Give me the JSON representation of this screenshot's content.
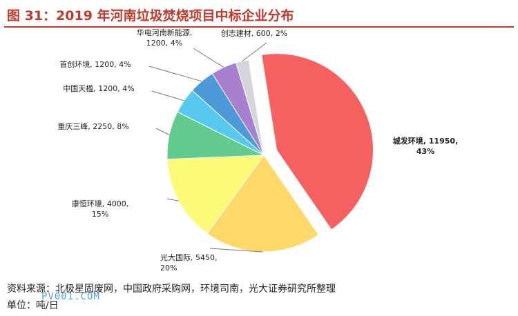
{
  "figure": {
    "title": "图 31：2019 年河南垃圾焚烧项目中标企业分布",
    "source": "资料来源：北极星固废网，中国政府采购网，环境司南，光大证券研究所整理",
    "unit": "单位：吨/日",
    "watermark": "PV001.COM"
  },
  "chart_data": {
    "type": "pie",
    "title": "图 31：2019 年河南垃圾焚烧项目中标企业分布",
    "unit": "吨/日",
    "slices": [
      {
        "name": "城发环境",
        "value": 11950,
        "percent": "43%",
        "color": "#f56060",
        "exploded": true,
        "label": "城发环境, 11950,",
        "label2": "43%"
      },
      {
        "name": "光大国际",
        "value": 5450,
        "percent": "20%",
        "color": "#ffd86a",
        "label": "光大国际, 5450,",
        "label2": "20%"
      },
      {
        "name": "康恒环境",
        "value": 4000,
        "percent": "15%",
        "color": "#fbfb78",
        "label": "康恒环境, 4000,",
        "label2": "15%"
      },
      {
        "name": "重庆三峰",
        "value": 2250,
        "percent": "8%",
        "color": "#62cc8e",
        "label": "重庆三峰, 2250, 8%"
      },
      {
        "name": "中国天楹",
        "value": 1200,
        "percent": "4%",
        "color": "#58c9ee",
        "label": "中国天楹, 1200, 4%"
      },
      {
        "name": "首创环境",
        "value": 1200,
        "percent": "4%",
        "color": "#4e9ad8",
        "label": "首创环境, 1200, 4%"
      },
      {
        "name": "华电河南新能源",
        "value": 1200,
        "percent": "4%",
        "color": "#a880cf",
        "label": "华电河南新能源,",
        "label2": "1200, 4%"
      },
      {
        "name": "创志建材",
        "value": 600,
        "percent": "2%",
        "color": "#d4d4dc",
        "label": "创志建材, 600, 2%"
      }
    ]
  }
}
